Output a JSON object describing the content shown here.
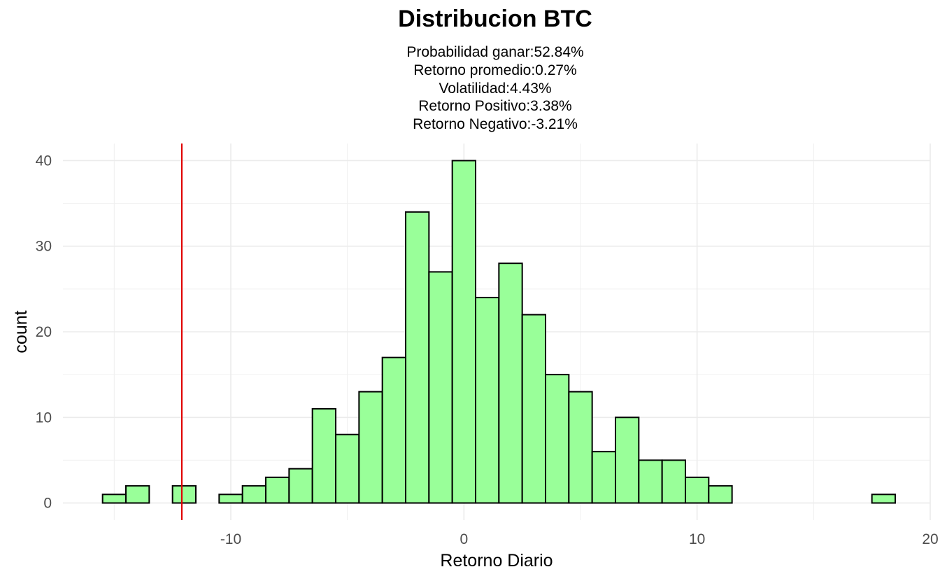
{
  "chart_data": {
    "type": "bar",
    "title": "Distribucion BTC",
    "subtitle_lines": [
      "Probabilidad ganar:52.84%",
      "Retorno promedio:0.27%",
      "Volatilidad:4.43%",
      "Retorno Positivo:3.38%",
      "Retorno Negativo:-3.21%"
    ],
    "xlabel": "Retorno Diario",
    "ylabel": "count",
    "xlim": [
      -17.2,
      20.0
    ],
    "ylim": [
      -2.0,
      42.0
    ],
    "x_ticks": [
      -10,
      0,
      10,
      20
    ],
    "y_ticks": [
      0,
      10,
      20,
      30,
      40
    ],
    "grid": true,
    "bin_width": 1.0,
    "bins": [
      {
        "center": -15.0,
        "count": 1
      },
      {
        "center": -14.0,
        "count": 2
      },
      {
        "center": -13.0,
        "count": 0
      },
      {
        "center": -12.0,
        "count": 2
      },
      {
        "center": -11.0,
        "count": 0
      },
      {
        "center": -10.0,
        "count": 1
      },
      {
        "center": -9.0,
        "count": 2
      },
      {
        "center": -8.0,
        "count": 3
      },
      {
        "center": -7.0,
        "count": 4
      },
      {
        "center": -6.0,
        "count": 11
      },
      {
        "center": -5.0,
        "count": 8
      },
      {
        "center": -4.0,
        "count": 13
      },
      {
        "center": -3.0,
        "count": 17
      },
      {
        "center": -2.0,
        "count": 34
      },
      {
        "center": -1.0,
        "count": 27
      },
      {
        "center": 0.0,
        "count": 40
      },
      {
        "center": 1.0,
        "count": 24
      },
      {
        "center": 2.0,
        "count": 28
      },
      {
        "center": 3.0,
        "count": 22
      },
      {
        "center": 4.0,
        "count": 15
      },
      {
        "center": 5.0,
        "count": 13
      },
      {
        "center": 6.0,
        "count": 6
      },
      {
        "center": 7.0,
        "count": 10
      },
      {
        "center": 8.0,
        "count": 5
      },
      {
        "center": 9.0,
        "count": 5
      },
      {
        "center": 10.0,
        "count": 3
      },
      {
        "center": 11.0,
        "count": 2
      },
      {
        "center": 12.0,
        "count": 0
      },
      {
        "center": 13.0,
        "count": 0
      },
      {
        "center": 14.0,
        "count": 0
      },
      {
        "center": 15.0,
        "count": 0
      },
      {
        "center": 16.0,
        "count": 0
      },
      {
        "center": 17.0,
        "count": 0
      },
      {
        "center": 18.0,
        "count": 1
      }
    ],
    "vline": {
      "x": -12.1,
      "color": "#e00000"
    },
    "bar_fill": "#99ff99",
    "bar_stroke": "#000000"
  }
}
